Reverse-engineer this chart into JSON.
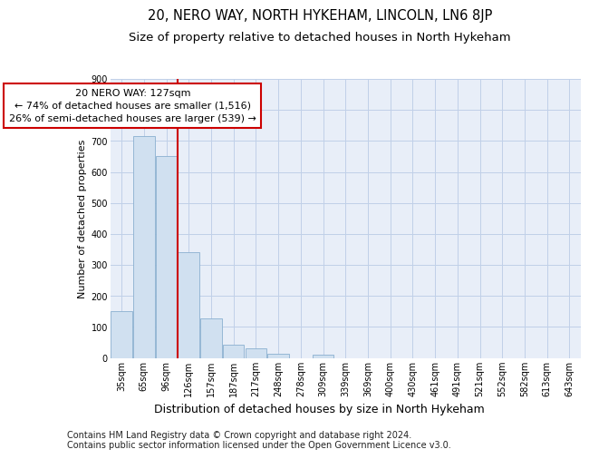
{
  "title": "20, NERO WAY, NORTH HYKEHAM, LINCOLN, LN6 8JP",
  "subtitle": "Size of property relative to detached houses in North Hykeham",
  "xlabel": "Distribution of detached houses by size in North Hykeham",
  "ylabel": "Number of detached properties",
  "categories": [
    "35sqm",
    "65sqm",
    "96sqm",
    "126sqm",
    "157sqm",
    "187sqm",
    "217sqm",
    "248sqm",
    "278sqm",
    "309sqm",
    "339sqm",
    "369sqm",
    "400sqm",
    "430sqm",
    "461sqm",
    "491sqm",
    "521sqm",
    "552sqm",
    "582sqm",
    "613sqm",
    "643sqm"
  ],
  "values": [
    150,
    715,
    650,
    340,
    128,
    43,
    32,
    13,
    0,
    10,
    0,
    0,
    0,
    0,
    0,
    0,
    0,
    0,
    0,
    0,
    0
  ],
  "bar_color": "#d0e0f0",
  "bar_edge_color": "#8ab0d0",
  "vline_x": 3,
  "vline_color": "#cc0000",
  "annotation_text": "20 NERO WAY: 127sqm\n← 74% of detached houses are smaller (1,516)\n26% of semi-detached houses are larger (539) →",
  "annotation_box_color": "#ffffff",
  "annotation_box_edge_color": "#cc0000",
  "ylim": [
    0,
    900
  ],
  "yticks": [
    0,
    100,
    200,
    300,
    400,
    500,
    600,
    700,
    800,
    900
  ],
  "grid_color": "#c0d0e8",
  "bg_color": "#e8eef8",
  "footnote1": "Contains HM Land Registry data © Crown copyright and database right 2024.",
  "footnote2": "Contains public sector information licensed under the Open Government Licence v3.0.",
  "title_fontsize": 10.5,
  "subtitle_fontsize": 9.5,
  "xlabel_fontsize": 9,
  "ylabel_fontsize": 8,
  "footnote_fontsize": 7,
  "tick_fontsize": 7,
  "annot_fontsize": 8
}
